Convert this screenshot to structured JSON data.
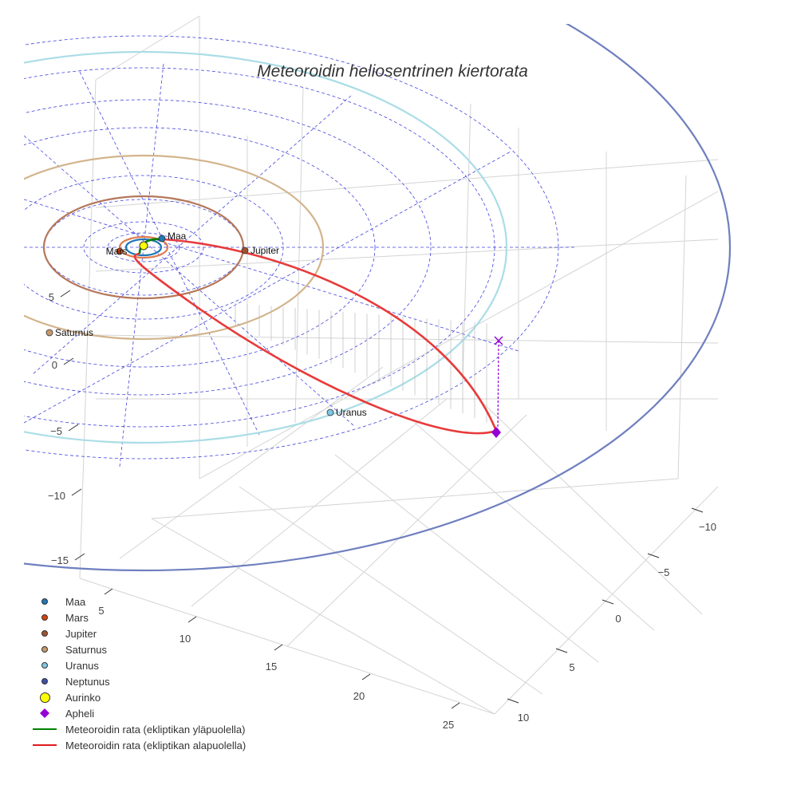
{
  "chart_data": {
    "type": "scatter3d",
    "title": "Meteoroidin heliosentrinen kiertorata",
    "axes": {
      "x": {
        "ticks": [
          "5",
          "10",
          "15",
          "20",
          "25"
        ]
      },
      "y": {
        "ticks": [
          "−10",
          "−5",
          "0",
          "5",
          "10"
        ]
      },
      "z": {
        "ticks": [
          "5",
          "0",
          "−5",
          "−10",
          "−15"
        ]
      }
    },
    "planets": [
      {
        "name": "Maa",
        "label": "Maa",
        "color": "#1f77b4"
      },
      {
        "name": "Mars",
        "label": "Mars",
        "color": "#d2440f"
      },
      {
        "name": "Jupiter",
        "label": "Jupiter",
        "color": "#a0522d"
      },
      {
        "name": "Saturnus",
        "label": "Saturnus",
        "color": "#c49a6c"
      },
      {
        "name": "Uranus",
        "label": "Uranus",
        "color": "#7ec8e3"
      },
      {
        "name": "Neptunus",
        "label": "Neptunus",
        "color": "#3f4fa8"
      }
    ],
    "sun": {
      "name": "Aurinko",
      "color": "#ffff00"
    },
    "aphelion": {
      "name": "Apheli",
      "color": "#9400d3"
    },
    "orbit_series": [
      {
        "name": "Meteoroidin rata (ekliptikan yläpuolella)",
        "color": "#008000"
      },
      {
        "name": "Meteoroidin rata (ekliptikan alapuolella)",
        "color": "#e31a1c"
      }
    ],
    "legend_position": "bottom-left"
  }
}
